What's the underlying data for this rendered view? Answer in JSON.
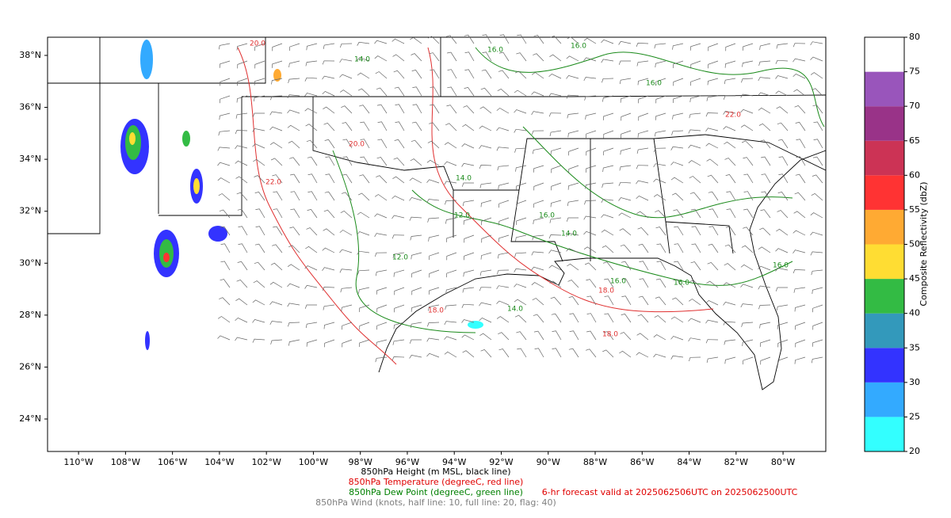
{
  "map": {
    "xlim": [
      -111.32,
      -78.18
    ],
    "ylim": [
      22.75,
      38.7
    ],
    "xticks": [
      {
        "value": -110,
        "label": "110°W"
      },
      {
        "value": -108,
        "label": "108°W"
      },
      {
        "value": -106,
        "label": "106°W"
      },
      {
        "value": -104,
        "label": "104°W"
      },
      {
        "value": -102,
        "label": "102°W"
      },
      {
        "value": -100,
        "label": "100°W"
      },
      {
        "value": -98,
        "label": "98°W"
      },
      {
        "value": -96,
        "label": "96°W"
      },
      {
        "value": -94,
        "label": "94°W"
      },
      {
        "value": -92,
        "label": "92°W"
      },
      {
        "value": -90,
        "label": "90°W"
      },
      {
        "value": -88,
        "label": "88°W"
      },
      {
        "value": -86,
        "label": "86°W"
      },
      {
        "value": -84,
        "label": "84°W"
      },
      {
        "value": -82,
        "label": "82°W"
      },
      {
        "value": -80,
        "label": "80°W"
      }
    ],
    "yticks": [
      {
        "value": 24,
        "label": "24°N"
      },
      {
        "value": 26,
        "label": "26°N"
      },
      {
        "value": 28,
        "label": "28°N"
      },
      {
        "value": 30,
        "label": "30°N"
      },
      {
        "value": 32,
        "label": "32°N"
      },
      {
        "value": 34,
        "label": "34°N"
      },
      {
        "value": 36,
        "label": "36°N"
      },
      {
        "value": 38,
        "label": "38°N"
      }
    ],
    "dew_point_labels": [
      "16.0",
      "14.0",
      "16.0",
      "16.0",
      "14.0",
      "12.0",
      "16.0",
      "14.0",
      "16.0",
      "12.0",
      "16.0",
      "14.0",
      "16.0"
    ],
    "temperature_labels": [
      "20.0",
      "22.0",
      "18.0",
      "18.0",
      "22.0",
      "20.0",
      "18.0"
    ]
  },
  "colorbar": {
    "label": "Composite Reflectivity (dbZ)",
    "ticks": [
      20,
      25,
      30,
      35,
      40,
      45,
      50,
      55,
      60,
      65,
      70,
      75,
      80
    ],
    "colors": [
      "#33ffff",
      "#33aaff",
      "#3333ff",
      "#3399bb",
      "#33bb44",
      "#ffdd33",
      "#ffaa33",
      "#ff3333",
      "#cc3355",
      "#993388",
      "#9955bb",
      "#ffffff"
    ]
  },
  "captions": {
    "height": "850hPa Height (m MSL, black line)",
    "temperature": "850hPa Temperature (degreeC, red line)",
    "dew_point": "850hPa Dew Point (degreeC, green line)",
    "wind": "850hPa Wind (knots, half line: 10, full line: 20, flag: 40)",
    "forecast": "6-hr forecast valid at 2025062506UTC on 2025062500UTC"
  }
}
